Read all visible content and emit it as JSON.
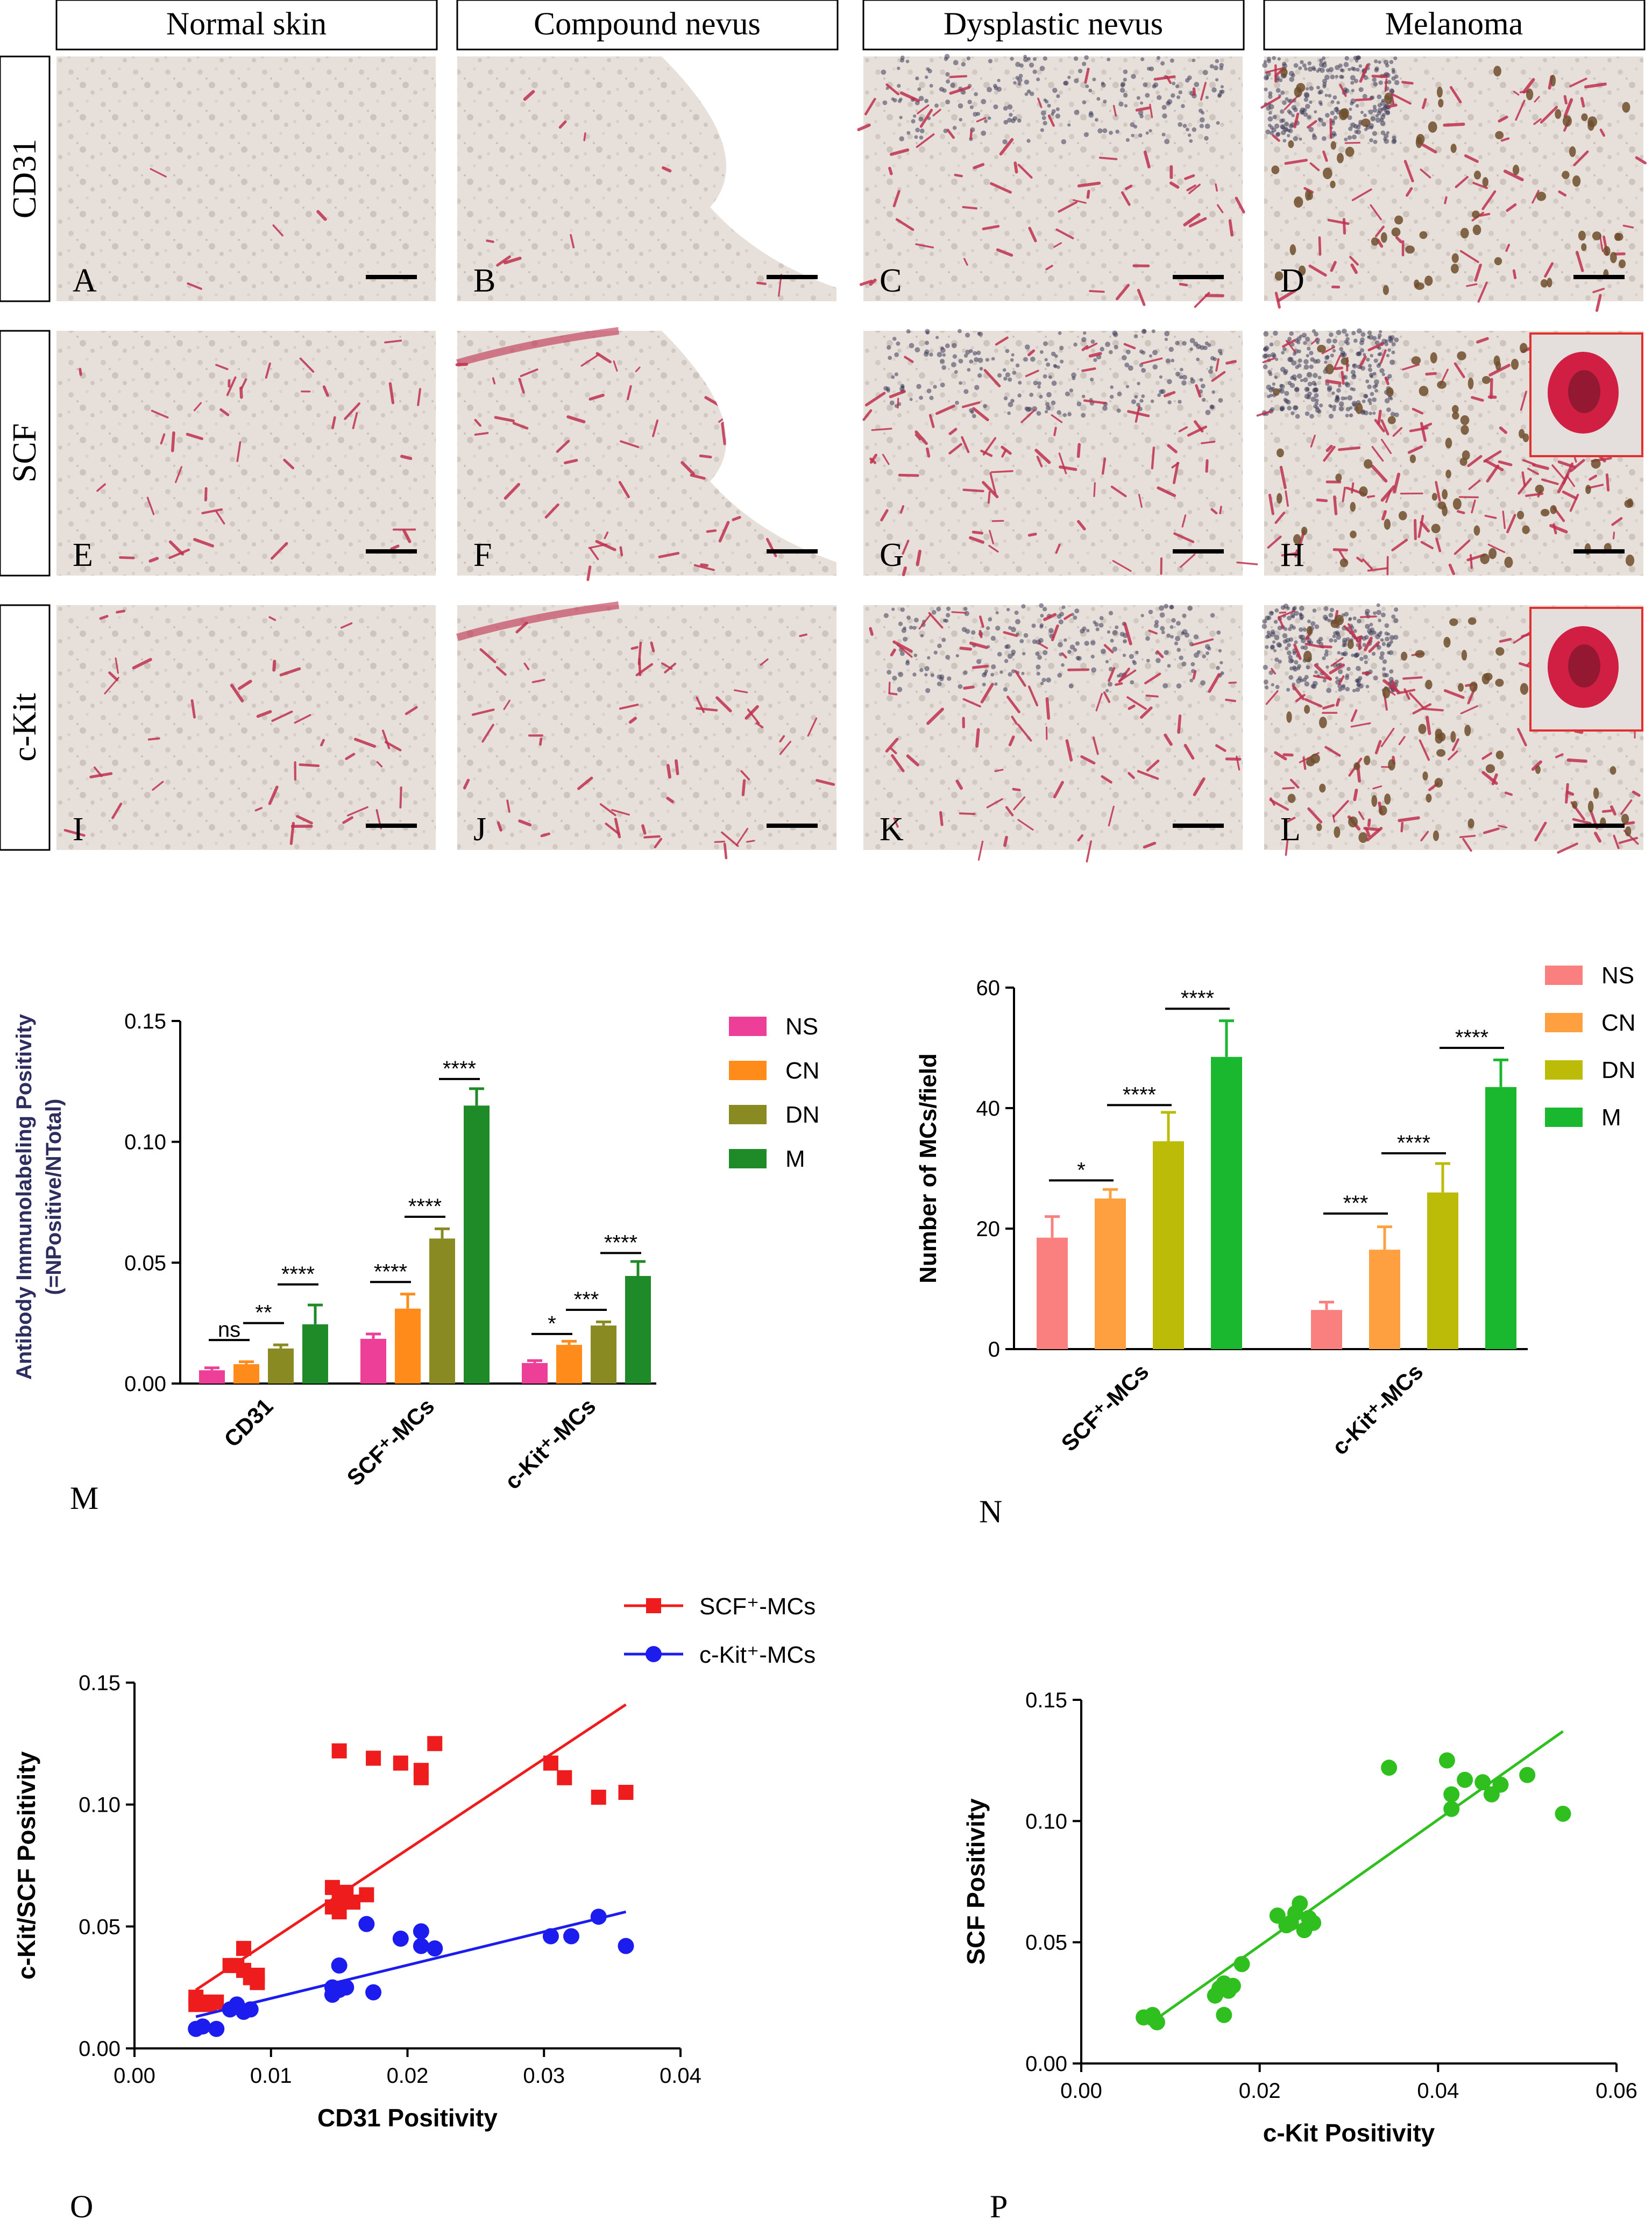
{
  "columns": [
    "Normal skin",
    "Compound nevus",
    "Dysplastic nevus",
    "Melanoma"
  ],
  "rows": [
    "CD31",
    "SCF",
    "c-Kit"
  ],
  "panel_letters": [
    "A",
    "B",
    "C",
    "D",
    "E",
    "F",
    "G",
    "H",
    "I",
    "J",
    "K",
    "L"
  ],
  "panel_labels": {
    "m": "M",
    "n": "N",
    "o": "O",
    "p": "P"
  },
  "colors": {
    "tissue_bg": "#e6dfda",
    "tissue_spot": "#d2c8c2",
    "stain_red": "#c0314f",
    "stain_brown": "#6e4e2c",
    "nuclei": "#3c3b5a",
    "inset_border": "#e03030"
  },
  "chart_data": [
    {
      "id": "M",
      "type": "bar",
      "categories": [
        "CD31",
        "SCF⁺-MCs",
        "c-Kit⁺-MCs"
      ],
      "ylabel_lines": [
        "Antibody Immunolabeling Positivity",
        "(=NPositive/NTotal)"
      ],
      "ylim": [
        0,
        0.15
      ],
      "yticks": [
        0,
        0.05,
        0.1,
        0.15
      ],
      "ytick_labels": [
        "0.00",
        "0.05",
        "0.10",
        "0.15"
      ],
      "series": [
        {
          "name": "NS",
          "color": "#ee3f98",
          "values": [
            0.0055,
            0.0185,
            0.0085
          ],
          "errors": [
            0.001,
            0.002,
            0.001
          ]
        },
        {
          "name": "CN",
          "color": "#ff8c1a",
          "values": [
            0.008,
            0.031,
            0.016
          ],
          "errors": [
            0.001,
            0.006,
            0.0015
          ]
        },
        {
          "name": "DN",
          "color": "#8a8a22",
          "values": [
            0.0145,
            0.06,
            0.024
          ],
          "errors": [
            0.0015,
            0.004,
            0.0015
          ]
        },
        {
          "name": "M",
          "color": "#1e8a28",
          "values": [
            0.0245,
            0.115,
            0.0445
          ],
          "errors": [
            0.008,
            0.007,
            0.006
          ]
        }
      ],
      "significance": [
        {
          "group": 0,
          "from": 0,
          "to": 1,
          "label": "ns",
          "y": 0.018
        },
        {
          "group": 0,
          "from": 1,
          "to": 2,
          "label": "**",
          "y": 0.025
        },
        {
          "group": 0,
          "from": 2,
          "to": 3,
          "label": "****",
          "y": 0.041
        },
        {
          "group": 1,
          "from": 0,
          "to": 1,
          "label": "****",
          "y": 0.042
        },
        {
          "group": 1,
          "from": 1,
          "to": 2,
          "label": "****",
          "y": 0.069
        },
        {
          "group": 1,
          "from": 2,
          "to": 3,
          "label": "****",
          "y": 0.126
        },
        {
          "group": 2,
          "from": 0,
          "to": 1,
          "label": "*",
          "y": 0.0205
        },
        {
          "group": 2,
          "from": 1,
          "to": 2,
          "label": "***",
          "y": 0.0305
        },
        {
          "group": 2,
          "from": 2,
          "to": 3,
          "label": "****",
          "y": 0.054
        }
      ]
    },
    {
      "id": "N",
      "type": "bar",
      "categories": [
        "SCF⁺-MCs",
        "c-Kit⁺-MCs"
      ],
      "ylabel_lines": [
        "Number of MCs/field"
      ],
      "ylim": [
        0,
        60
      ],
      "yticks": [
        0,
        20,
        40,
        60
      ],
      "ytick_labels": [
        "0",
        "20",
        "40",
        "60"
      ],
      "series": [
        {
          "name": "NS",
          "color": "#fa8080",
          "values": [
            18.5,
            6.5
          ],
          "errors": [
            3.5,
            1.3
          ]
        },
        {
          "name": "CN",
          "color": "#ffa040",
          "values": [
            25.0,
            16.5
          ],
          "errors": [
            1.5,
            3.8
          ]
        },
        {
          "name": "DN",
          "color": "#bcbc08",
          "values": [
            34.5,
            26.0
          ],
          "errors": [
            4.8,
            4.8
          ]
        },
        {
          "name": "M",
          "color": "#19b82f",
          "values": [
            48.5,
            43.5
          ],
          "errors": [
            6.0,
            4.5
          ]
        }
      ],
      "significance": [
        {
          "group": 0,
          "from": 0,
          "to": 1,
          "label": "*",
          "y": 28.0
        },
        {
          "group": 0,
          "from": 1,
          "to": 2,
          "label": "****",
          "y": 40.5
        },
        {
          "group": 0,
          "from": 2,
          "to": 3,
          "label": "****",
          "y": 56.5
        },
        {
          "group": 1,
          "from": 0,
          "to": 1,
          "label": "***",
          "y": 22.5
        },
        {
          "group": 1,
          "from": 1,
          "to": 2,
          "label": "****",
          "y": 32.5
        },
        {
          "group": 1,
          "from": 2,
          "to": 3,
          "label": "****",
          "y": 50.0
        }
      ]
    },
    {
      "id": "O",
      "type": "scatter",
      "xlabel": "CD31 Positivity",
      "ylabel": "c-Kit/SCF Positivity",
      "xlim": [
        0,
        0.04
      ],
      "ylim": [
        0,
        0.15
      ],
      "xticks": [
        0,
        0.01,
        0.02,
        0.03,
        0.04
      ],
      "xtick_labels": [
        "0.00",
        "0.01",
        "0.02",
        "0.03",
        "0.04"
      ],
      "yticks": [
        0,
        0.05,
        0.1,
        0.15
      ],
      "ytick_labels": [
        "0.00",
        "0.05",
        "0.10",
        "0.15"
      ],
      "series": [
        {
          "name": "SCF⁺-MCs",
          "color": "#ee1c1c",
          "marker": "square",
          "fit": [
            [
              0.0045,
              0.024
            ],
            [
              0.036,
              0.141
            ]
          ],
          "points": [
            [
              0.0045,
              0.018
            ],
            [
              0.0045,
              0.021
            ],
            [
              0.005,
              0.019
            ],
            [
              0.006,
              0.019
            ],
            [
              0.0055,
              0.018
            ],
            [
              0.007,
              0.034
            ],
            [
              0.0075,
              0.034
            ],
            [
              0.008,
              0.041
            ],
            [
              0.0085,
              0.029
            ],
            [
              0.008,
              0.032
            ],
            [
              0.009,
              0.03
            ],
            [
              0.009,
              0.027
            ],
            [
              0.0145,
              0.058
            ],
            [
              0.015,
              0.062
            ],
            [
              0.0145,
              0.066
            ],
            [
              0.015,
              0.056
            ],
            [
              0.016,
              0.06
            ],
            [
              0.0155,
              0.064
            ],
            [
              0.017,
              0.063
            ],
            [
              0.015,
              0.122
            ],
            [
              0.0175,
              0.119
            ],
            [
              0.0195,
              0.117
            ],
            [
              0.021,
              0.114
            ],
            [
              0.021,
              0.111
            ],
            [
              0.022,
              0.125
            ],
            [
              0.0305,
              0.117
            ],
            [
              0.0315,
              0.111
            ],
            [
              0.034,
              0.103
            ],
            [
              0.036,
              0.105
            ]
          ]
        },
        {
          "name": "c-Kit⁺-MCs",
          "color": "#1c1cee",
          "marker": "circle",
          "fit": [
            [
              0.0045,
              0.013
            ],
            [
              0.036,
              0.056
            ]
          ],
          "points": [
            [
              0.0045,
              0.008
            ],
            [
              0.005,
              0.009
            ],
            [
              0.006,
              0.008
            ],
            [
              0.007,
              0.016
            ],
            [
              0.0075,
              0.018
            ],
            [
              0.008,
              0.015
            ],
            [
              0.0085,
              0.016
            ],
            [
              0.0145,
              0.022
            ],
            [
              0.015,
              0.024
            ],
            [
              0.0155,
              0.025
            ],
            [
              0.0145,
              0.025
            ],
            [
              0.015,
              0.034
            ],
            [
              0.0175,
              0.023
            ],
            [
              0.017,
              0.051
            ],
            [
              0.0195,
              0.045
            ],
            [
              0.021,
              0.042
            ],
            [
              0.021,
              0.048
            ],
            [
              0.022,
              0.041
            ],
            [
              0.0305,
              0.046
            ],
            [
              0.032,
              0.046
            ],
            [
              0.034,
              0.054
            ],
            [
              0.036,
              0.042
            ]
          ]
        }
      ]
    },
    {
      "id": "P",
      "type": "scatter",
      "xlabel": "c-Kit Positivity",
      "ylabel": "SCF Positivity",
      "xlim": [
        0,
        0.06
      ],
      "ylim": [
        0,
        0.15
      ],
      "xticks": [
        0,
        0.02,
        0.04,
        0.06
      ],
      "xtick_labels": [
        "0.00",
        "0.02",
        "0.04",
        "0.06"
      ],
      "yticks": [
        0,
        0.05,
        0.1,
        0.15
      ],
      "ytick_labels": [
        "0.00",
        "0.05",
        "0.10",
        "0.15"
      ],
      "series": [
        {
          "color": "#2fbf1f",
          "marker": "circle",
          "fit": [
            [
              0.0075,
              0.016
            ],
            [
              0.054,
              0.137
            ]
          ],
          "points": [
            [
              0.007,
              0.019
            ],
            [
              0.008,
              0.02
            ],
            [
              0.0085,
              0.017
            ],
            [
              0.015,
              0.028
            ],
            [
              0.0155,
              0.031
            ],
            [
              0.016,
              0.033
            ],
            [
              0.0165,
              0.03
            ],
            [
              0.017,
              0.032
            ],
            [
              0.016,
              0.02
            ],
            [
              0.018,
              0.041
            ],
            [
              0.022,
              0.061
            ],
            [
              0.023,
              0.057
            ],
            [
              0.024,
              0.062
            ],
            [
              0.0245,
              0.066
            ],
            [
              0.025,
              0.055
            ],
            [
              0.0255,
              0.06
            ],
            [
              0.026,
              0.058
            ],
            [
              0.0235,
              0.058
            ],
            [
              0.0345,
              0.122
            ],
            [
              0.041,
              0.125
            ],
            [
              0.0415,
              0.111
            ],
            [
              0.0415,
              0.105
            ],
            [
              0.043,
              0.117
            ],
            [
              0.045,
              0.116
            ],
            [
              0.046,
              0.111
            ],
            [
              0.047,
              0.115
            ],
            [
              0.05,
              0.119
            ],
            [
              0.054,
              0.103
            ]
          ]
        }
      ]
    }
  ]
}
